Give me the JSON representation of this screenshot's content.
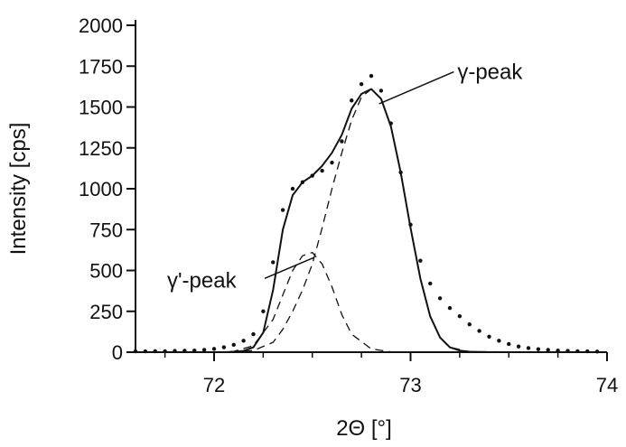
{
  "chart_data": {
    "type": "line",
    "xlabel": "2Θ [°]",
    "ylabel": "Intensity [cps]",
    "xlim": [
      71.6,
      74.0
    ],
    "ylim": [
      0,
      2000
    ],
    "x_ticks": [
      72,
      73,
      74
    ],
    "y_ticks": [
      0,
      250,
      500,
      750,
      1000,
      1250,
      1500,
      1750,
      2000
    ],
    "grid": false,
    "legend": "none",
    "series": [
      {
        "style": "dotted",
        "x": [
          71.6,
          71.65,
          71.7,
          71.75,
          71.8,
          71.85,
          71.9,
          71.95,
          72.0,
          72.05,
          72.1,
          72.15,
          72.2,
          72.25,
          72.3,
          72.35,
          72.4,
          72.45,
          72.5,
          72.55,
          72.6,
          72.65,
          72.7,
          72.75,
          72.8,
          72.85,
          72.9,
          72.95,
          73.0,
          73.05,
          73.1,
          73.15,
          73.2,
          73.25,
          73.3,
          73.35,
          73.4,
          73.45,
          73.5,
          73.55,
          73.6,
          73.65,
          73.7,
          73.75,
          73.8,
          73.85,
          73.9,
          73.95
        ],
        "values": [
          5,
          5,
          6,
          6,
          8,
          9,
          10,
          14,
          20,
          30,
          45,
          70,
          110,
          250,
          550,
          870,
          1000,
          1040,
          1080,
          1110,
          1160,
          1290,
          1540,
          1640,
          1690,
          1600,
          1400,
          1100,
          780,
          560,
          420,
          330,
          270,
          220,
          170,
          130,
          95,
          70,
          50,
          35,
          25,
          18,
          14,
          10,
          8,
          6,
          5,
          4
        ]
      },
      {
        "style": "solid",
        "x": [
          71.6,
          71.7,
          71.8,
          71.9,
          72.0,
          72.05,
          72.1,
          72.15,
          72.2,
          72.25,
          72.3,
          72.35,
          72.4,
          72.45,
          72.5,
          72.55,
          72.6,
          72.65,
          72.7,
          72.75,
          72.8,
          72.85,
          72.9,
          72.95,
          73.0,
          73.05,
          73.1,
          73.15,
          73.2,
          73.25,
          73.3,
          73.4,
          73.5,
          73.6,
          73.8,
          74.0
        ],
        "values": [
          0,
          0,
          0,
          0,
          0,
          0,
          2,
          8,
          30,
          120,
          380,
          750,
          960,
          1040,
          1080,
          1140,
          1220,
          1330,
          1490,
          1580,
          1610,
          1550,
          1380,
          1100,
          760,
          450,
          220,
          90,
          30,
          10,
          3,
          0,
          0,
          0,
          0,
          0
        ]
      },
      {
        "name": "γ'-peak",
        "style": "dashed",
        "x": [
          71.6,
          72.0,
          72.1,
          72.2,
          72.3,
          72.35,
          72.4,
          72.45,
          72.5,
          72.55,
          72.6,
          72.65,
          72.7,
          72.8,
          72.9,
          74.0
        ],
        "values": [
          0,
          0,
          5,
          40,
          200,
          350,
          500,
          590,
          610,
          540,
          400,
          230,
          110,
          20,
          2,
          0
        ]
      },
      {
        "name": "γ-peak",
        "style": "dashed",
        "x": [
          71.6,
          72.1,
          72.2,
          72.3,
          72.35,
          72.4,
          72.45,
          72.5,
          72.55,
          72.6,
          72.65,
          72.7,
          72.75,
          72.8,
          72.85,
          72.9,
          72.95,
          73.0,
          73.05,
          73.1,
          73.15,
          73.2,
          73.3,
          74.0
        ],
        "values": [
          0,
          0,
          10,
          60,
          140,
          250,
          380,
          540,
          760,
          1000,
          1220,
          1420,
          1560,
          1610,
          1550,
          1380,
          1100,
          760,
          450,
          220,
          90,
          30,
          3,
          0
        ]
      }
    ],
    "annotations": [
      {
        "text": "γ-peak",
        "x": 73.22,
        "y": 1715,
        "target_x": 72.84,
        "target_y": 1520
      },
      {
        "text": "γ'-peak",
        "x": 71.77,
        "y": 440,
        "target_x": 72.51,
        "target_y": 580
      }
    ]
  }
}
